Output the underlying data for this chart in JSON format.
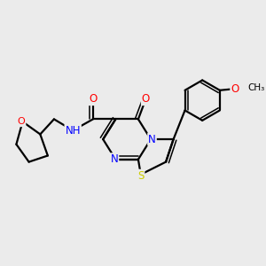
{
  "bg_color": "#ebebeb",
  "line_color": "#000000",
  "bond_width": 1.6,
  "atom_colors": {
    "N": "#0000ff",
    "O": "#ff0000",
    "S": "#cccc00",
    "C": "#000000"
  },
  "font_size": 8.5,
  "fig_width": 3.0,
  "fig_height": 3.0,
  "dpi": 100
}
